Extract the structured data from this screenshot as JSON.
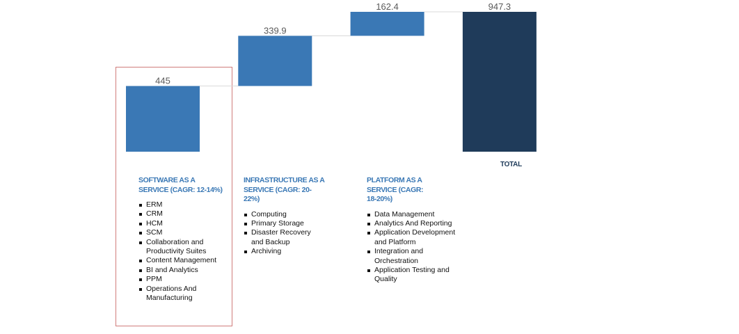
{
  "chart_data": {
    "type": "waterfall",
    "title": "",
    "xlabel": "",
    "ylabel": "",
    "ylim": [
      0,
      947.3
    ],
    "grid": false,
    "legend": "none",
    "categories": [
      "Software as a Service",
      "Infrastructure as a Service",
      "Platform as a Service",
      "Total"
    ],
    "values": [
      445,
      339.9,
      162.4,
      947.3
    ],
    "value_labels": [
      "445",
      "339.9",
      "162.4",
      "947.3"
    ],
    "is_total": [
      false,
      false,
      false,
      true
    ],
    "colors": {
      "increment": "#3a78b5",
      "total": "#1f3b5a",
      "connector": "#d9d9d9",
      "highlight_border": "#c0504d"
    }
  },
  "segments": [
    {
      "title": "SOFTWARE AS A SERVICE (CAGR: 12-14%)",
      "items": [
        "ERM",
        "CRM",
        "HCM",
        "SCM",
        "Collaboration and Productivity Suites",
        "Content Management",
        "BI and Analytics",
        "PPM",
        "Operations And Manufacturing"
      ]
    },
    {
      "title": "INFRASTRUCTURE AS A SERVICE  (CAGR: 20-22%)",
      "items": [
        "Computing",
        "Primary Storage",
        "Disaster Recovery and Backup",
        "Archiving"
      ]
    },
    {
      "title": "PLATFORM AS A SERVICE (CAGR: 18-20%)",
      "items": [
        "Data Management",
        "Analytics And Reporting",
        "Application Development and Platform",
        "Integration and Orchestration",
        "Application Testing and Quality"
      ]
    }
  ],
  "total_label": "TOTAL"
}
